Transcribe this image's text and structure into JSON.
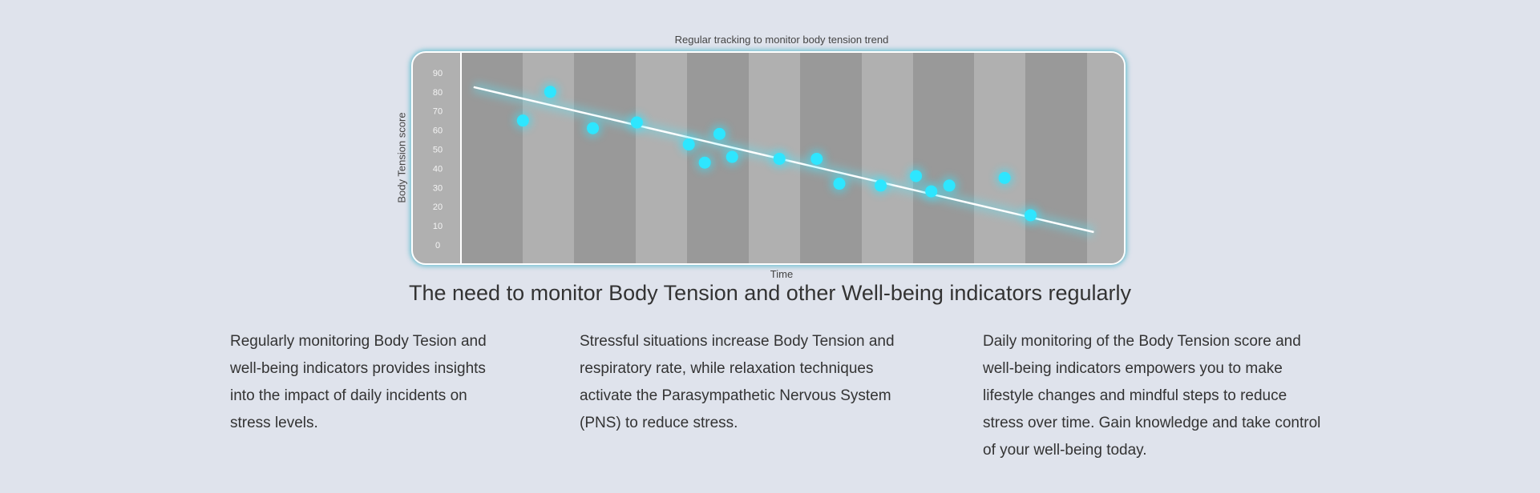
{
  "chart_data": {
    "type": "scatter",
    "title": "Regular tracking to monitor body tension trend",
    "xlabel": "Time",
    "ylabel": "Body Tension score",
    "ylim": [
      0,
      90
    ],
    "y_ticks": [
      "0",
      "10",
      "20",
      "30",
      "40",
      "50",
      "60",
      "70",
      "80",
      "90"
    ],
    "xlim": [
      0,
      100
    ],
    "x_tick_labels": [],
    "grid": false,
    "point_color": "#2ee6ff",
    "trend_color": "#ffffff",
    "points": [
      {
        "x": 9.3,
        "y": 65
      },
      {
        "x": 13.4,
        "y": 80
      },
      {
        "x": 19.8,
        "y": 61
      },
      {
        "x": 26.4,
        "y": 64
      },
      {
        "x": 34.2,
        "y": 52.5
      },
      {
        "x": 36.6,
        "y": 43
      },
      {
        "x": 38.8,
        "y": 58
      },
      {
        "x": 40.7,
        "y": 46
      },
      {
        "x": 47.8,
        "y": 45
      },
      {
        "x": 53.4,
        "y": 45
      },
      {
        "x": 56.8,
        "y": 32
      },
      {
        "x": 63.0,
        "y": 31
      },
      {
        "x": 68.3,
        "y": 36
      },
      {
        "x": 70.6,
        "y": 28
      },
      {
        "x": 73.3,
        "y": 31
      },
      {
        "x": 81.6,
        "y": 35
      },
      {
        "x": 85.5,
        "y": 15.5
      }
    ],
    "trend_line": [
      {
        "x": 1.9,
        "y": 82.5
      },
      {
        "x": 95.0,
        "y": 6.7
      }
    ]
  },
  "heading": "The need to monitor Body Tension and other Well-being indicators regularly",
  "columns": [
    {
      "lines": [
        "Regularly monitoring Body Tesion and",
        "well-being indicators provides insights",
        "into the impact of daily incidents on",
        "stress levels."
      ]
    },
    {
      "lines": [
        "Stressful situations increase Body Tension and",
        "respiratory rate, while relaxation techniques",
        "activate the Parasympathetic Nervous System",
        "(PNS) to reduce stress."
      ]
    },
    {
      "lines": [
        "Daily monitoring of the Body Tension score and",
        "well-being indicators empowers you to make",
        "lifestyle changes and mindful steps to reduce",
        "stress over time. Gain knowledge and take control",
        "of your well-being today."
      ]
    }
  ]
}
